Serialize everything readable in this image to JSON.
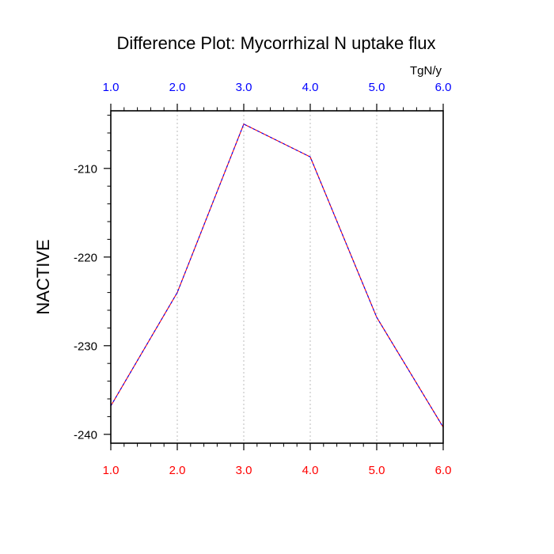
{
  "chart_data": {
    "type": "line",
    "title": "Difference Plot: Mycorrhizal N uptake flux",
    "units": "TgN/y",
    "ylabel": "NACTIVE",
    "xlabel": "",
    "x": [
      1,
      2,
      3,
      4,
      5,
      6
    ],
    "xlim": [
      1,
      6
    ],
    "ylim": [
      -241,
      -203.5
    ],
    "x_tick_values": [
      1,
      2,
      3,
      4,
      5,
      6
    ],
    "x_tick_labels": [
      "1.0",
      "2.0",
      "3.0",
      "4.0",
      "5.0",
      "6.0"
    ],
    "y_tick_values": [
      -210,
      -220,
      -230,
      -240
    ],
    "y_tick_labels": [
      "-210",
      "-220",
      "-230",
      "-240"
    ],
    "series": [
      {
        "values": [
          -236.8,
          -224.0,
          -205.0,
          -208.7,
          -226.8,
          -239.2
        ],
        "color": "#ff0000",
        "overlay_color": "#0000ff",
        "style": "dashed"
      }
    ],
    "grid": {
      "x": true,
      "y": false,
      "style": "dotted",
      "color": "#bbbbbb"
    },
    "colors": {
      "bottom_axis_labels": "#ff0000",
      "top_axis_labels": "#0000ff",
      "axes": "#000000"
    }
  }
}
